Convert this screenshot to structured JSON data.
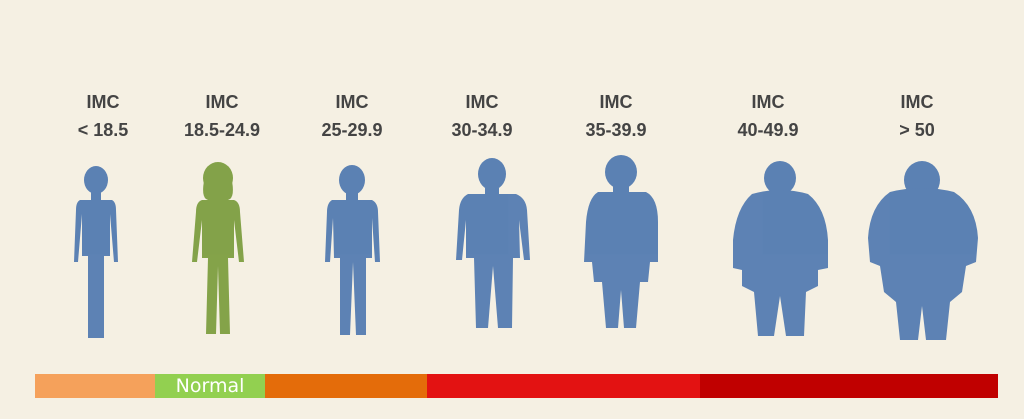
{
  "categories": [
    {
      "label": "IMC",
      "range": "< 18.5",
      "color": "#4f78b0"
    },
    {
      "label": "IMC",
      "range": "18.5-24.9",
      "color": "#7a9c3c"
    },
    {
      "label": "IMC",
      "range": "25-29.9",
      "color": "#4f78b0"
    },
    {
      "label": "IMC",
      "range": "30-34.9",
      "color": "#4f78b0"
    },
    {
      "label": "IMC",
      "range": "35-39.9",
      "color": "#4f78b0"
    },
    {
      "label": "IMC",
      "range": "40-49.9",
      "color": "#4f78b0"
    },
    {
      "label": "IMC",
      "range": "> 50",
      "color": "#4f78b0"
    }
  ],
  "scale_bar": [
    {
      "text": "",
      "color": "#f5a15b"
    },
    {
      "text": "Normal",
      "color": "#92d050"
    },
    {
      "text": "",
      "color": "#e46c0a"
    },
    {
      "text": "",
      "color": "#e31212"
    },
    {
      "text": "",
      "color": "#c00000"
    }
  ]
}
